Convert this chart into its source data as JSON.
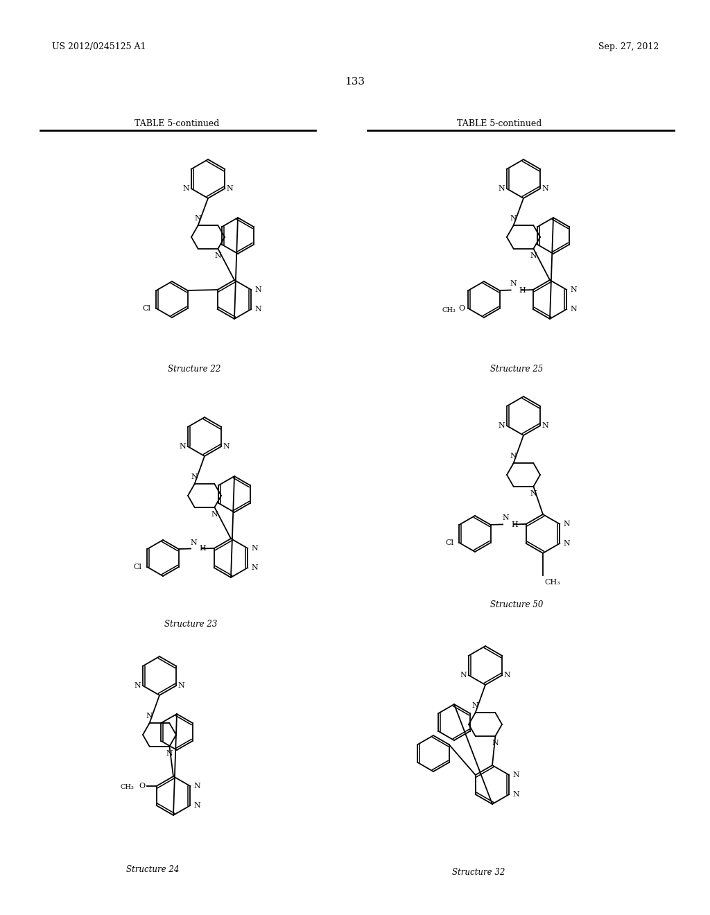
{
  "patent_number": "US 2012/0245125 A1",
  "patent_date": "Sep. 27, 2012",
  "page_number": "133",
  "table_title": "TABLE 5-continued",
  "background_color": "#ffffff",
  "structures": [
    "Structure 22",
    "Structure 25",
    "Structure 23",
    "Structure 50",
    "Structure 24",
    "Structure 32"
  ]
}
